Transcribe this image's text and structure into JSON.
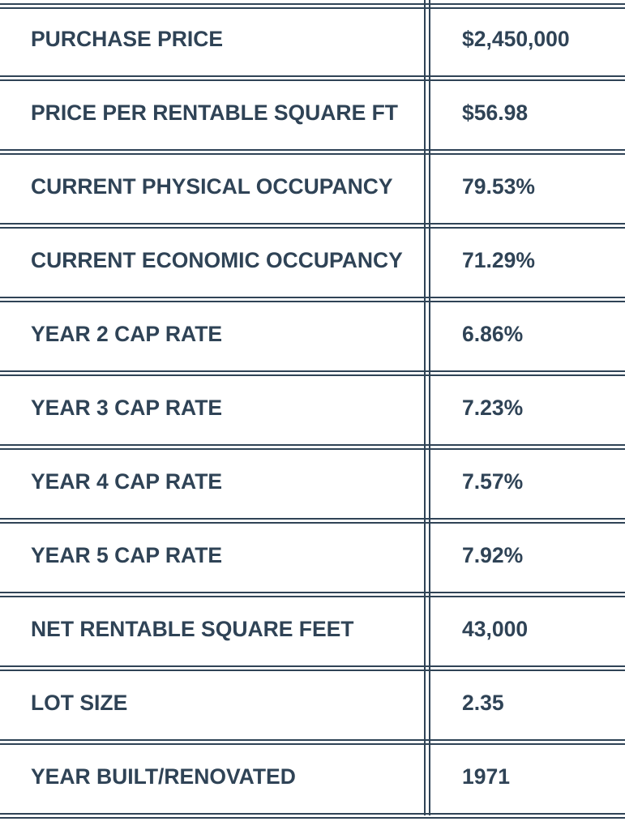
{
  "rows": [
    {
      "label": "PURCHASE PRICE",
      "value": "$2,450,000"
    },
    {
      "label": "PRICE PER RENTABLE SQUARE FT",
      "value": "$56.98"
    },
    {
      "label": "CURRENT PHYSICAL OCCUPANCY",
      "value": "79.53%"
    },
    {
      "label": "CURRENT ECONOMIC OCCUPANCY",
      "value": "71.29%"
    },
    {
      "label": "YEAR 2 CAP RATE",
      "value": "6.86%"
    },
    {
      "label": "YEAR 3 CAP RATE",
      "value": "7.23%"
    },
    {
      "label": "YEAR 4 CAP RATE",
      "value": "7.57%"
    },
    {
      "label": "YEAR 5 CAP RATE",
      "value": "7.92%"
    },
    {
      "label": "NET RENTABLE SQUARE FEET",
      "value": "43,000"
    },
    {
      "label": "LOT SIZE",
      "value": "2.35"
    },
    {
      "label": "YEAR BUILT/RENOVATED",
      "value": "1971"
    }
  ]
}
